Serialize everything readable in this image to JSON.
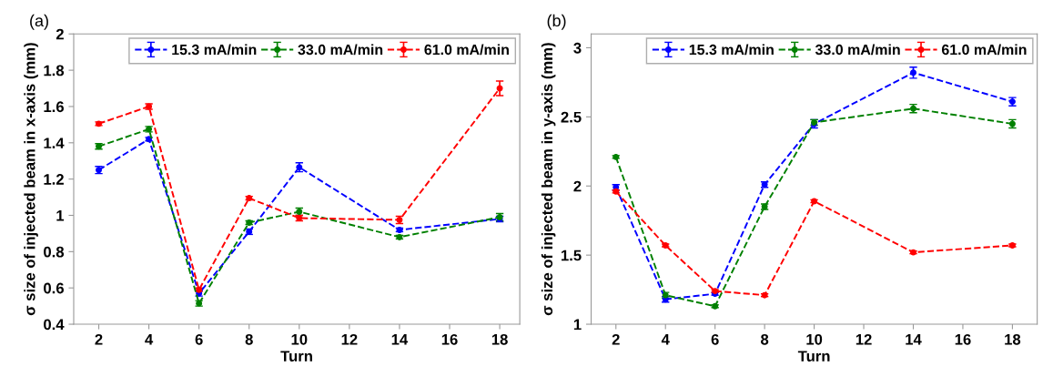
{
  "chart_data": [
    {
      "type": "line",
      "title": "(a)",
      "xlabel": "Turn",
      "ylabel": "σ size of injected beam in x-axis (mm)",
      "xlim": [
        1,
        18.8
      ],
      "xticks": [
        2,
        4,
        6,
        8,
        10,
        12,
        14,
        16,
        18
      ],
      "ylim": [
        0.4,
        2
      ],
      "yticks": [
        0.4,
        0.6,
        0.8,
        1,
        1.2,
        1.4,
        1.6,
        1.8,
        2
      ],
      "grid": false,
      "legend": "top right",
      "marker": "circle",
      "line_style": "dashed",
      "x": [
        2,
        4,
        6,
        8,
        10,
        14,
        18
      ],
      "series": [
        {
          "name": "15.3 mA/min",
          "color": "#0000ff",
          "values": [
            1.25,
            1.42,
            0.57,
            0.91,
            1.265,
            0.92,
            0.98
          ],
          "errors": [
            0.02,
            0.01,
            0.015,
            0.015,
            0.025,
            0.01,
            0.015
          ]
        },
        {
          "name": "33.0 mA/min",
          "color": "#008000",
          "values": [
            1.38,
            1.475,
            0.515,
            0.96,
            1.02,
            0.88,
            0.99
          ],
          "errors": [
            0.015,
            0.015,
            0.015,
            0.01,
            0.02,
            0.01,
            0.02
          ]
        },
        {
          "name": "61.0 mA/min",
          "color": "#ff0000",
          "values": [
            1.505,
            1.6,
            0.59,
            1.095,
            0.985,
            0.975,
            1.7
          ],
          "errors": [
            0.01,
            0.015,
            0.01,
            0.01,
            0.015,
            0.02,
            0.04
          ]
        }
      ]
    },
    {
      "type": "line",
      "title": "(b)",
      "xlabel": "Turn",
      "ylabel": "σ size of injected beam in y-axis (mm)",
      "xlim": [
        1,
        19
      ],
      "xticks": [
        2,
        4,
        6,
        8,
        10,
        12,
        14,
        16,
        18
      ],
      "ylim": [
        1,
        3.1
      ],
      "yticks": [
        1,
        1.5,
        2,
        2.5,
        3
      ],
      "grid": false,
      "legend": "top right",
      "marker": "circle",
      "line_style": "dashed",
      "x": [
        2,
        4,
        6,
        8,
        10,
        14,
        18
      ],
      "series": [
        {
          "name": "15.3 mA/min",
          "color": "#0000ff",
          "values": [
            1.99,
            1.18,
            1.22,
            2.01,
            2.45,
            2.82,
            2.61
          ],
          "errors": [
            0.02,
            0.02,
            0.01,
            0.02,
            0.03,
            0.04,
            0.03
          ]
        },
        {
          "name": "33.0 mA/min",
          "color": "#008000",
          "values": [
            2.21,
            1.21,
            1.13,
            1.85,
            2.46,
            2.56,
            2.45
          ],
          "errors": [
            0.01,
            0.02,
            0.01,
            0.02,
            0.02,
            0.03,
            0.03
          ]
        },
        {
          "name": "61.0 mA/min",
          "color": "#ff0000",
          "values": [
            1.96,
            1.57,
            1.24,
            1.21,
            1.89,
            1.52,
            1.57
          ],
          "errors": [
            0.01,
            0.01,
            0.01,
            0.01,
            0.01,
            0.01,
            0.01
          ]
        }
      ]
    }
  ]
}
